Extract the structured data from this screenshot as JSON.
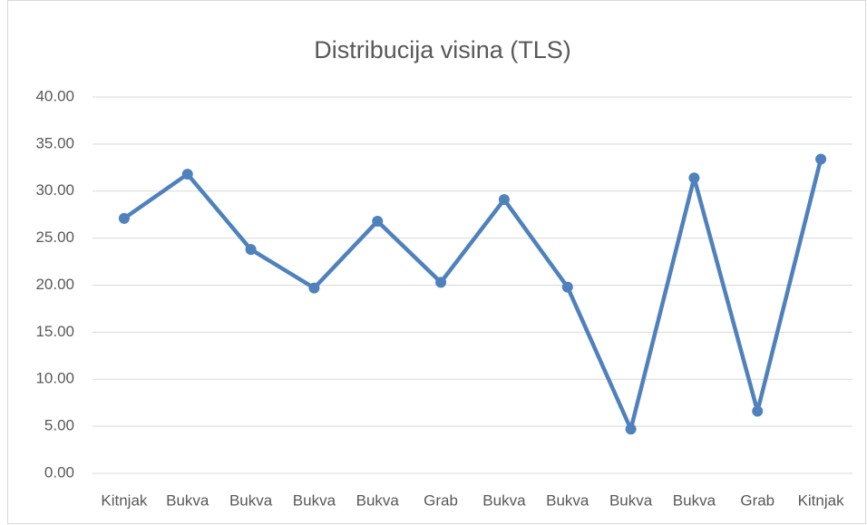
{
  "chart_data": {
    "type": "line",
    "title": "Distribucija visina (TLS)",
    "categories": [
      "Kitnjak",
      "Bukva",
      "Bukva",
      "Bukva",
      "Bukva",
      "Grab",
      "Bukva",
      "Bukva",
      "Bukva",
      "Bukva",
      "Grab",
      "Kitnjak"
    ],
    "values": [
      27.1,
      31.8,
      23.8,
      19.7,
      26.8,
      20.3,
      29.1,
      19.8,
      4.7,
      31.4,
      6.6,
      33.4
    ],
    "color": "#4f81bd",
    "ylim": [
      0,
      40
    ],
    "yticks": [
      {
        "value": 0,
        "label": "0.00"
      },
      {
        "value": 5,
        "label": "5.00"
      },
      {
        "value": 10,
        "label": "10.00"
      },
      {
        "value": 15,
        "label": "15.00"
      },
      {
        "value": 20,
        "label": "20.00"
      },
      {
        "value": 25,
        "label": "25.00"
      },
      {
        "value": 30,
        "label": "30.00"
      },
      {
        "value": 35,
        "label": "35.00"
      },
      {
        "value": 40,
        "label": "40.00"
      }
    ],
    "grid": true
  }
}
